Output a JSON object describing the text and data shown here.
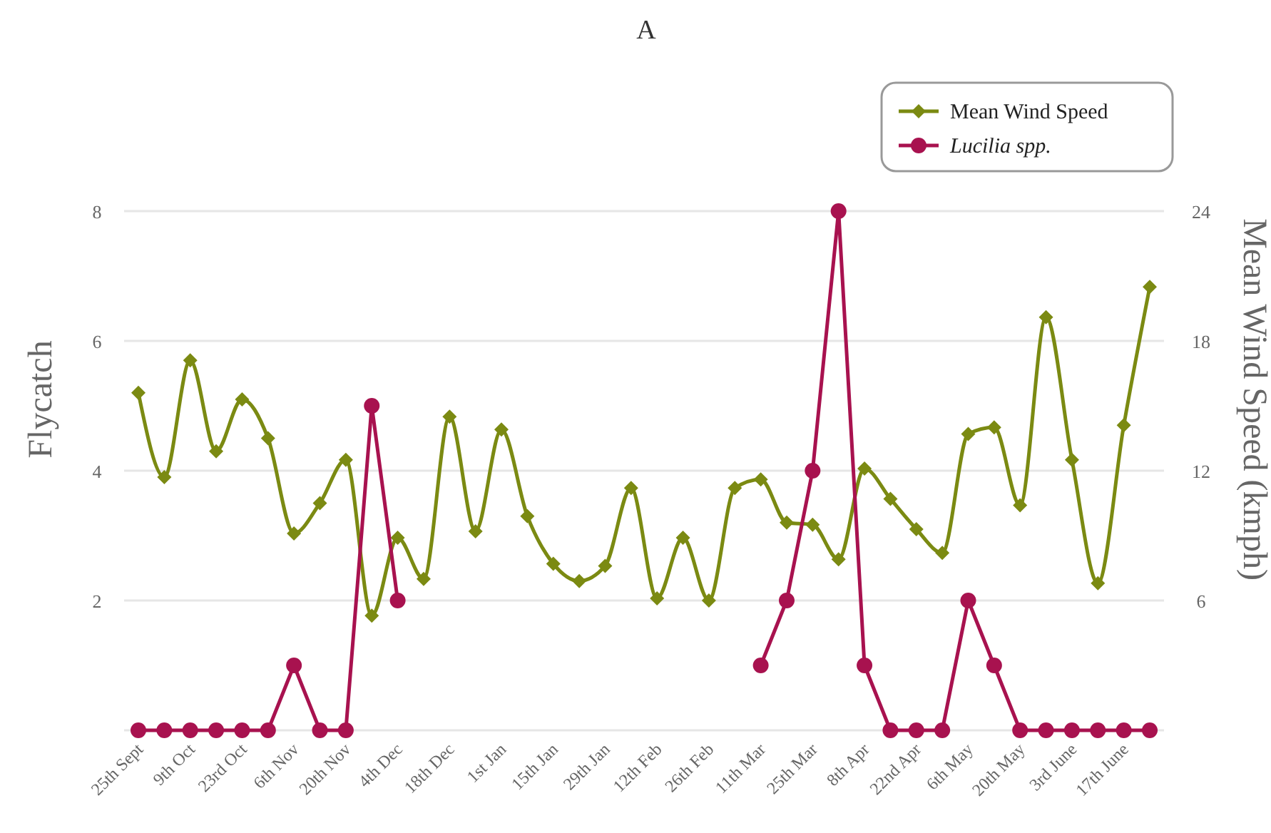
{
  "chart_data": {
    "type": "line",
    "title": "A",
    "ylabel": "Flycatch",
    "y2label": "Mean Wind Speed (kmph)",
    "categories": [
      "25th Sept",
      null,
      "9th Oct",
      null,
      "23rd Oct",
      null,
      "6th Nov",
      null,
      "20th Nov",
      null,
      "4th Dec",
      null,
      "18th Dec",
      null,
      "1st Jan",
      null,
      "15th Jan",
      null,
      "29th Jan",
      null,
      "12th Feb",
      null,
      "26th Feb",
      null,
      "11th Mar",
      null,
      "25th Mar",
      null,
      "8th Apr",
      null,
      "22nd Apr",
      null,
      "6th May",
      null,
      "20th May",
      null,
      "3rd June",
      null,
      "17th June",
      null
    ],
    "series": [
      {
        "name": "Mean Wind Speed",
        "color": "#7b8a12",
        "axis": "y2",
        "marker": "diamond",
        "values": [
          15.6,
          11.7,
          17.1,
          12.9,
          15.3,
          13.5,
          9.1,
          10.5,
          12.5,
          5.3,
          8.9,
          7.0,
          14.5,
          9.2,
          13.9,
          9.9,
          7.7,
          6.9,
          7.6,
          11.2,
          6.1,
          8.9,
          6.0,
          11.2,
          11.6,
          9.6,
          9.5,
          7.9,
          12.1,
          10.7,
          9.3,
          8.2,
          13.7,
          14.0,
          10.4,
          19.1,
          12.5,
          6.8,
          14.1,
          20.5
        ]
      },
      {
        "name": "Lucilia spp.",
        "color": "#a8124f",
        "marker": "circle",
        "values": [
          0,
          0,
          0,
          0,
          0,
          0,
          1,
          0,
          0,
          5,
          2,
          null,
          null,
          null,
          null,
          null,
          null,
          null,
          null,
          null,
          null,
          null,
          null,
          null,
          1,
          2,
          4,
          8,
          1,
          0,
          0,
          0,
          2,
          1,
          0,
          0,
          0,
          0,
          0,
          0
        ]
      }
    ],
    "ylim": [
      0,
      8
    ],
    "yticks": [
      {
        "value": 0,
        "label": null
      },
      2,
      4,
      6,
      8
    ],
    "y2lim": [
      0,
      24
    ],
    "y2ticks": [
      6,
      12,
      18,
      24
    ],
    "grid": "y",
    "legend": "top right"
  }
}
